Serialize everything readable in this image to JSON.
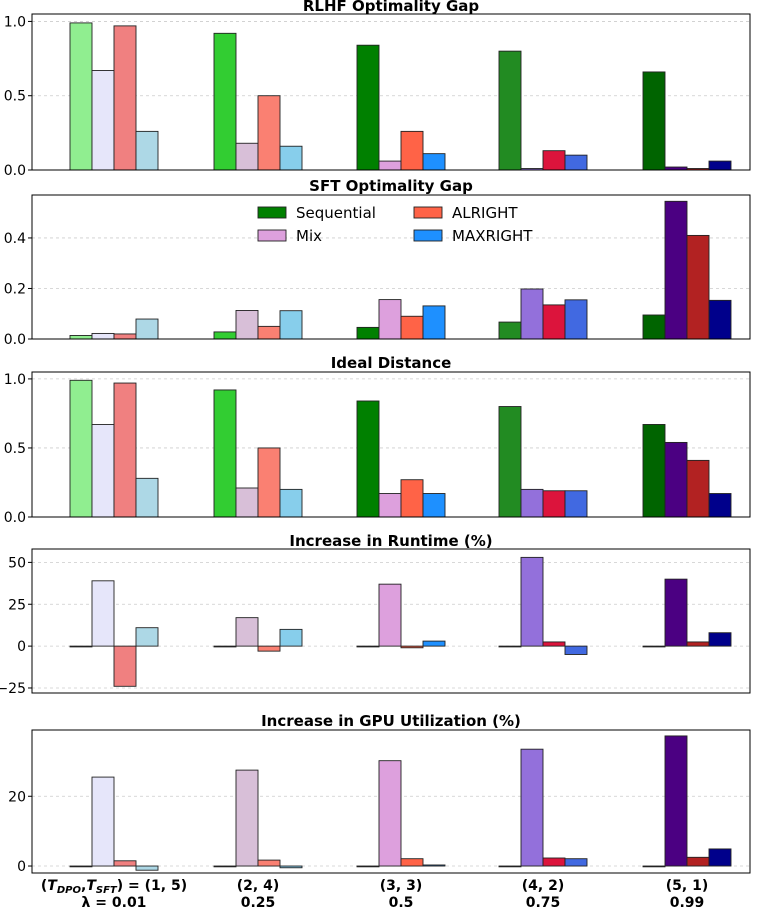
{
  "legend": [
    {
      "name": "Sequential",
      "color": "#008000"
    },
    {
      "name": "ALRIGHT",
      "color": "#ff6347"
    },
    {
      "name": "Mix",
      "color": "#dda0dd"
    },
    {
      "name": "MAXRIGHT",
      "color": "#1e90ff"
    }
  ],
  "x_labels": [
    {
      "line1": "(T_DPO,T_SFT) = (1, 5)",
      "line2": "λ = 0.01"
    },
    {
      "line1": "(2, 4)",
      "line2": "0.25"
    },
    {
      "line1": "(3, 3)",
      "line2": "0.5"
    },
    {
      "line1": "(4, 2)",
      "line2": "0.75"
    },
    {
      "line1": "(5, 1)",
      "line2": "0.99"
    }
  ],
  "chart_data": [
    {
      "type": "bar",
      "title": "RLHF Optimality Gap",
      "categories": [
        "(1, 5) λ=0.01",
        "(2, 4) 0.25",
        "(3, 3) 0.5",
        "(4, 2) 0.75",
        "(5, 1) 0.99"
      ],
      "series": [
        {
          "name": "Sequential",
          "values": [
            0.99,
            0.92,
            0.84,
            0.8,
            0.66
          ]
        },
        {
          "name": "Mix",
          "values": [
            0.67,
            0.18,
            0.06,
            0.01,
            0.02
          ]
        },
        {
          "name": "ALRIGHT",
          "values": [
            0.97,
            0.5,
            0.26,
            0.13,
            0.01
          ]
        },
        {
          "name": "MAXRIGHT",
          "values": [
            0.26,
            0.16,
            0.11,
            0.1,
            0.06
          ]
        }
      ],
      "colors": [
        [
          "#90ee90",
          "#e6e6fa",
          "#f08080",
          "#add8e6"
        ],
        [
          "#32cd32",
          "#d8bfd8",
          "#fa8072",
          "#87ceeb"
        ],
        [
          "#008000",
          "#dda0dd",
          "#ff6347",
          "#1e90ff"
        ],
        [
          "#228b22",
          "#9370db",
          "#dc143c",
          "#4169e1"
        ],
        [
          "#006400",
          "#4b0082",
          "#b22222",
          "#00008b"
        ]
      ],
      "ylim": [
        0,
        1.05
      ],
      "yticks": [
        0.0,
        0.5,
        1.0
      ],
      "ytick_labels": [
        "0.0",
        "0.5",
        "1.0"
      ],
      "grid": true
    },
    {
      "type": "bar",
      "title": "SFT Optimality Gap",
      "categories": [
        "(1, 5) λ=0.01",
        "(2, 4) 0.25",
        "(3, 3) 0.5",
        "(4, 2) 0.75",
        "(5, 1) 0.99"
      ],
      "series": [
        {
          "name": "Sequential",
          "values": [
            0.014,
            0.028,
            0.046,
            0.067,
            0.095
          ]
        },
        {
          "name": "Mix",
          "values": [
            0.022,
            0.113,
            0.156,
            0.198,
            0.545
          ]
        },
        {
          "name": "ALRIGHT",
          "values": [
            0.02,
            0.05,
            0.09,
            0.135,
            0.41
          ]
        },
        {
          "name": "MAXRIGHT",
          "values": [
            0.079,
            0.112,
            0.131,
            0.155,
            0.153
          ]
        }
      ],
      "colors": [
        [
          "#90ee90",
          "#e6e6fa",
          "#f08080",
          "#add8e6"
        ],
        [
          "#32cd32",
          "#d8bfd8",
          "#fa8072",
          "#87ceeb"
        ],
        [
          "#008000",
          "#dda0dd",
          "#ff6347",
          "#1e90ff"
        ],
        [
          "#228b22",
          "#9370db",
          "#dc143c",
          "#4169e1"
        ],
        [
          "#006400",
          "#4b0082",
          "#b22222",
          "#00008b"
        ]
      ],
      "ylim": [
        0,
        0.57
      ],
      "yticks": [
        0.0,
        0.2,
        0.4
      ],
      "ytick_labels": [
        "0.0",
        "0.2",
        "0.4"
      ],
      "grid": true,
      "legend_position": "top-center"
    },
    {
      "type": "bar",
      "title": "Ideal Distance",
      "categories": [
        "(1, 5) λ=0.01",
        "(2, 4) 0.25",
        "(3, 3) 0.5",
        "(4, 2) 0.75",
        "(5, 1) 0.99"
      ],
      "series": [
        {
          "name": "Sequential",
          "values": [
            0.99,
            0.92,
            0.84,
            0.8,
            0.67
          ]
        },
        {
          "name": "Mix",
          "values": [
            0.67,
            0.21,
            0.17,
            0.2,
            0.54
          ]
        },
        {
          "name": "ALRIGHT",
          "values": [
            0.97,
            0.5,
            0.27,
            0.19,
            0.41
          ]
        },
        {
          "name": "MAXRIGHT",
          "values": [
            0.28,
            0.2,
            0.17,
            0.19,
            0.17
          ]
        }
      ],
      "colors": [
        [
          "#90ee90",
          "#e6e6fa",
          "#f08080",
          "#add8e6"
        ],
        [
          "#32cd32",
          "#d8bfd8",
          "#fa8072",
          "#87ceeb"
        ],
        [
          "#008000",
          "#dda0dd",
          "#ff6347",
          "#1e90ff"
        ],
        [
          "#228b22",
          "#9370db",
          "#dc143c",
          "#4169e1"
        ],
        [
          "#006400",
          "#4b0082",
          "#b22222",
          "#00008b"
        ]
      ],
      "ylim": [
        0,
        1.05
      ],
      "yticks": [
        0.0,
        0.5,
        1.0
      ],
      "ytick_labels": [
        "0.0",
        "0.5",
        "1.0"
      ],
      "grid": true
    },
    {
      "type": "bar",
      "title": "Increase in Runtime (%)",
      "categories": [
        "(1, 5) λ=0.01",
        "(2, 4) 0.25",
        "(3, 3) 0.5",
        "(4, 2) 0.75",
        "(5, 1) 0.99"
      ],
      "series": [
        {
          "name": "Sequential",
          "values": [
            0,
            0,
            0,
            0,
            0
          ]
        },
        {
          "name": "Mix",
          "values": [
            39,
            17,
            37,
            53,
            40
          ]
        },
        {
          "name": "ALRIGHT",
          "values": [
            -24,
            -3,
            -1,
            2.5,
            2.5
          ]
        },
        {
          "name": "MAXRIGHT",
          "values": [
            11,
            10,
            3,
            -5,
            8
          ]
        }
      ],
      "colors": [
        [
          "#90ee90",
          "#e6e6fa",
          "#f08080",
          "#add8e6"
        ],
        [
          "#32cd32",
          "#d8bfd8",
          "#fa8072",
          "#87ceeb"
        ],
        [
          "#008000",
          "#dda0dd",
          "#ff6347",
          "#1e90ff"
        ],
        [
          "#228b22",
          "#9370db",
          "#dc143c",
          "#4169e1"
        ],
        [
          "#006400",
          "#4b0082",
          "#b22222",
          "#00008b"
        ]
      ],
      "ylim": [
        -28,
        58
      ],
      "yticks": [
        -25,
        0,
        25,
        50
      ],
      "ytick_labels": [
        "−25",
        "0",
        "25",
        "50"
      ],
      "grid": true
    },
    {
      "type": "bar",
      "title": "Increase in GPU Utilization (%)",
      "categories": [
        "(1, 5) λ=0.01",
        "(2, 4) 0.25",
        "(3, 3) 0.5",
        "(4, 2) 0.75",
        "(5, 1) 0.99"
      ],
      "series": [
        {
          "name": "Sequential",
          "values": [
            0,
            0,
            0,
            0,
            0
          ]
        },
        {
          "name": "Mix",
          "values": [
            25.5,
            27.5,
            30.2,
            33.5,
            37.3
          ]
        },
        {
          "name": "ALRIGHT",
          "values": [
            1.5,
            1.7,
            2.1,
            2.3,
            2.5
          ]
        },
        {
          "name": "MAXRIGHT",
          "values": [
            -1.2,
            -0.5,
            0.3,
            2.1,
            4.9
          ]
        }
      ],
      "colors": [
        [
          "#90ee90",
          "#e6e6fa",
          "#f08080",
          "#add8e6"
        ],
        [
          "#32cd32",
          "#d8bfd8",
          "#fa8072",
          "#87ceeb"
        ],
        [
          "#008000",
          "#dda0dd",
          "#ff6347",
          "#1e90ff"
        ],
        [
          "#228b22",
          "#9370db",
          "#dc143c",
          "#4169e1"
        ],
        [
          "#006400",
          "#4b0082",
          "#b22222",
          "#00008b"
        ]
      ],
      "ylim": [
        -2,
        39
      ],
      "yticks": [
        0,
        20
      ],
      "ytick_labels": [
        "0",
        "20"
      ],
      "grid": true
    }
  ]
}
